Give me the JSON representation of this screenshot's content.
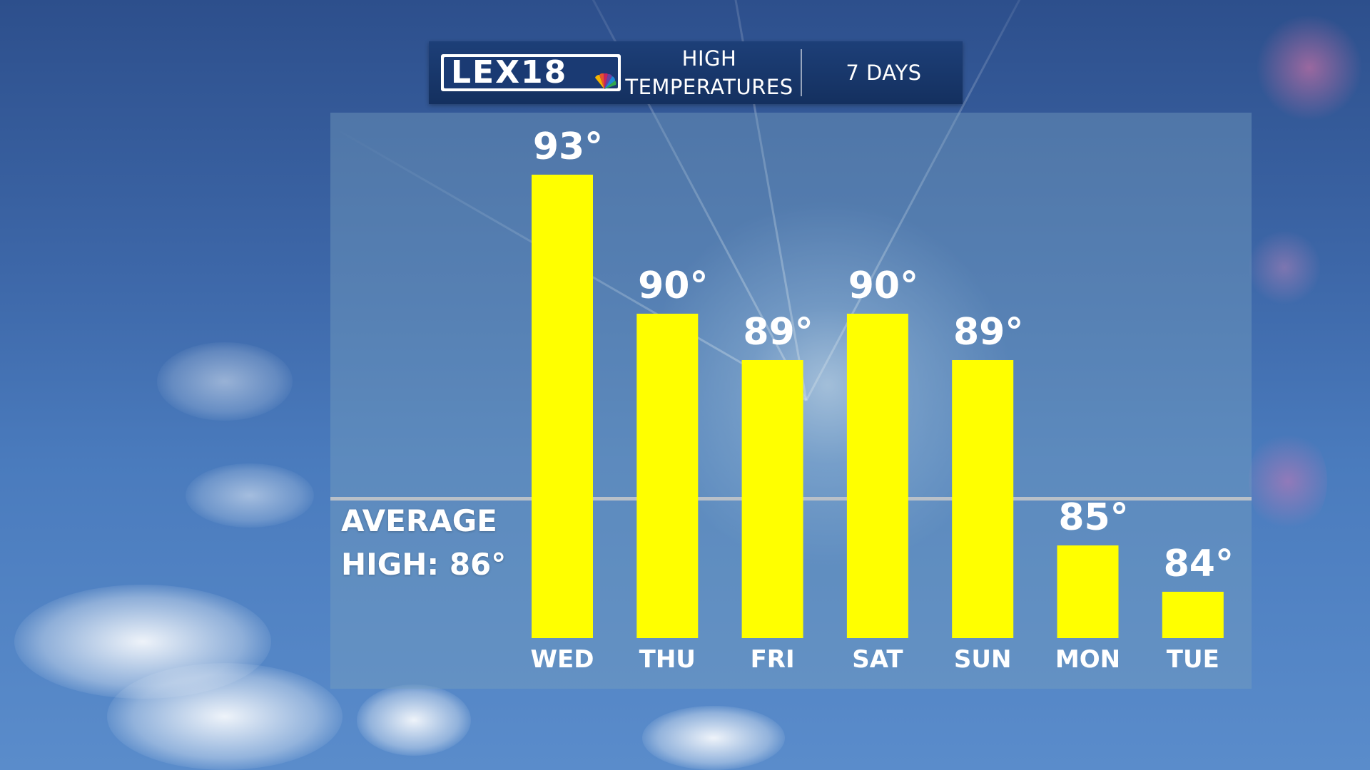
{
  "header": {
    "logo_text": "LEX18",
    "title": "HIGH TEMPERATURES",
    "range": "7 DAYS"
  },
  "average": {
    "line1": "AVERAGE",
    "line2": "HIGH: 86°",
    "value": 86
  },
  "colors": {
    "bar": "#ffff00",
    "header_bg": "#17346a"
  },
  "chart_data": {
    "type": "bar",
    "categories": [
      "WED",
      "THU",
      "FRI",
      "SAT",
      "SUN",
      "MON",
      "TUE"
    ],
    "values": [
      93,
      90,
      89,
      90,
      89,
      85,
      84
    ],
    "value_labels": [
      "93°",
      "90°",
      "89°",
      "90°",
      "89°",
      "85°",
      "84°"
    ],
    "reference_line": 86,
    "title": "HIGH TEMPERATURES",
    "xlabel": "",
    "ylabel": "",
    "grid": false
  }
}
